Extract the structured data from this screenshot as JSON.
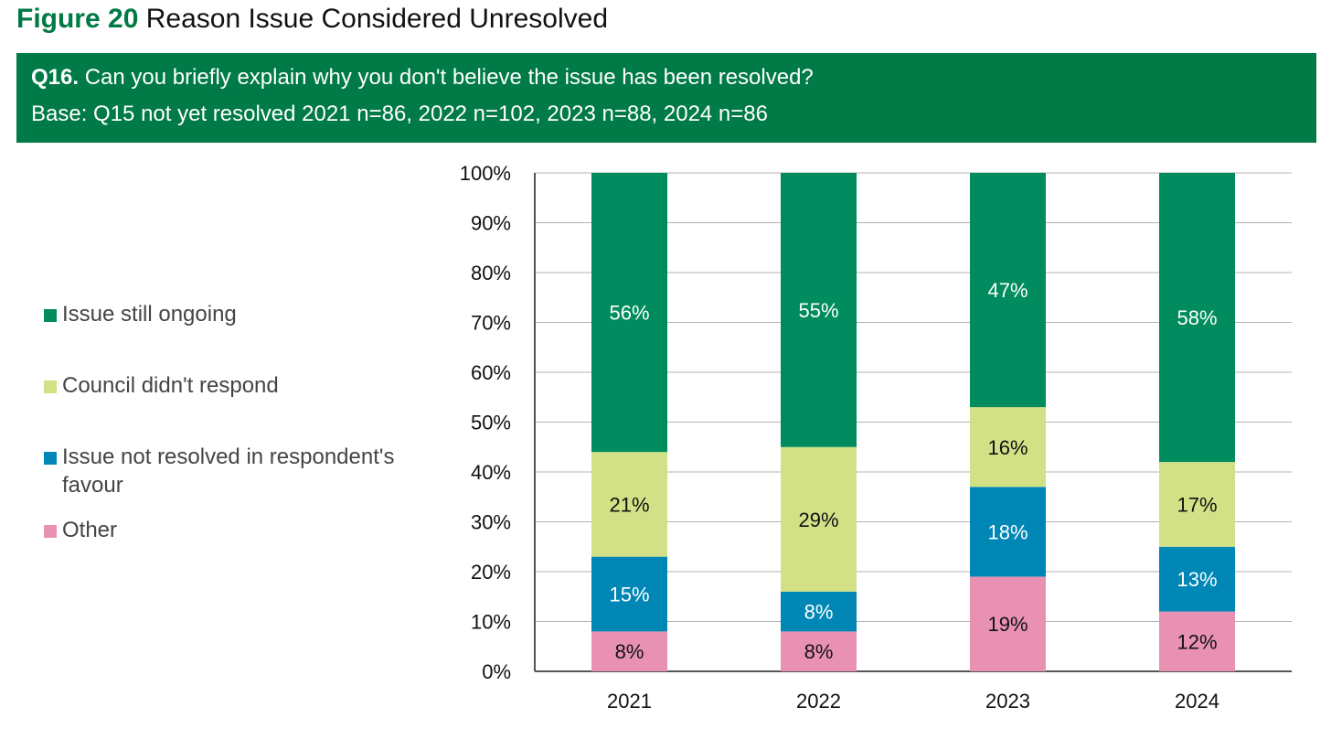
{
  "figure": {
    "number": "Figure 20",
    "title": "Reason Issue Considered Unresolved"
  },
  "question": {
    "number": "Q16.",
    "text": "Can you briefly explain why you don't believe the issue has been resolved?",
    "base": "Base: Q15 not yet resolved 2021 n=86, 2022 n=102, 2023 n=88, 2024 n=86"
  },
  "colors": {
    "header_bg": "#007a46",
    "figure_label": "#007a44"
  },
  "chart_data": {
    "type": "bar",
    "stacked": true,
    "categories": [
      "2021",
      "2022",
      "2023",
      "2024"
    ],
    "series": [
      {
        "name": "Other",
        "values": [
          8,
          8,
          19,
          12
        ],
        "labels": [
          "8%",
          "8%",
          "19%",
          "12%"
        ],
        "color": "#e891b3",
        "label_color": "#111111"
      },
      {
        "name": "Issue not resolved in respondent's favour",
        "values": [
          15,
          8,
          18,
          13
        ],
        "labels": [
          "15%",
          "8%",
          "18%",
          "13%"
        ],
        "color": "#0087b5",
        "label_color": "#ffffff"
      },
      {
        "name": "Council didn't respond",
        "values": [
          21,
          29,
          16,
          17
        ],
        "labels": [
          "21%",
          "29%",
          "16%",
          "17%"
        ],
        "color": "#d3e186",
        "label_color": "#111111"
      },
      {
        "name": "Issue still ongoing",
        "values": [
          56,
          55,
          47,
          58
        ],
        "labels": [
          "56%",
          "55%",
          "47%",
          "58%"
        ],
        "color": "#008c5f",
        "label_color": "#ffffff"
      }
    ],
    "legend_order": [
      "Issue still ongoing",
      "Council didn't respond",
      "Issue not resolved in respondent's favour",
      "Other"
    ],
    "legend_position": "left",
    "yticks": [
      "0%",
      "10%",
      "20%",
      "30%",
      "40%",
      "50%",
      "60%",
      "70%",
      "80%",
      "90%",
      "100%"
    ],
    "ylim": [
      0,
      100
    ],
    "grid": true
  }
}
